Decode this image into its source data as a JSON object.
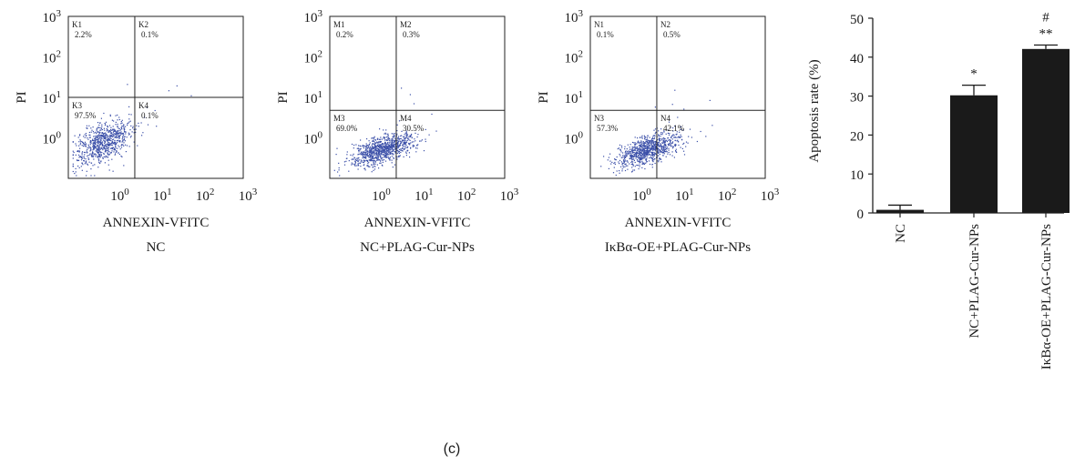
{
  "figure": {
    "caption": "(c)"
  },
  "flow_panels": [
    {
      "group_label": "NC",
      "xlabel": "ANNEXIN-VFITC",
      "ylabel": "PI",
      "quadrants": [
        {
          "name": "K1",
          "pct": "2.2%"
        },
        {
          "name": "K2",
          "pct": "0.1%"
        },
        {
          "name": "K3",
          "pct": "97.5%"
        },
        {
          "name": "K4",
          "pct": "0.1%"
        }
      ],
      "gate_x": 0.38,
      "gate_y": 0.5,
      "cloud": {
        "cx": -0.3,
        "cy": -0.1,
        "sx": 0.33,
        "sy": 0.28,
        "rho": 0.5,
        "n": 750
      }
    },
    {
      "group_label": "NC+PLAG-Cur-NPs",
      "xlabel": "ANNEXIN-VFITC",
      "ylabel": "PI",
      "quadrants": [
        {
          "name": "M1",
          "pct": "0.2%"
        },
        {
          "name": "M2",
          "pct": "0.3%"
        },
        {
          "name": "M3",
          "pct": "69.0%"
        },
        {
          "name": "M4",
          "pct": "30.5%"
        }
      ],
      "gate_x": 0.38,
      "gate_y": 0.58,
      "cloud": {
        "cx": 0.12,
        "cy": -0.28,
        "sx": 0.38,
        "sy": 0.2,
        "rho": 0.6,
        "n": 900
      }
    },
    {
      "group_label": "IκBα-OE+PLAG-Cur-NPs",
      "xlabel": "ANNEXIN-VFITC",
      "ylabel": "PI",
      "quadrants": [
        {
          "name": "N1",
          "pct": "0.1%"
        },
        {
          "name": "N2",
          "pct": "0.5%"
        },
        {
          "name": "N3",
          "pct": "57.3%"
        },
        {
          "name": "N4",
          "pct": "42.1%"
        }
      ],
      "gate_x": 0.38,
      "gate_y": 0.58,
      "cloud": {
        "cx": 0.25,
        "cy": -0.28,
        "sx": 0.38,
        "sy": 0.2,
        "rho": 0.6,
        "n": 900
      }
    }
  ],
  "chart_data": {
    "type": "bar",
    "ylabel": "Apoptosis rate (%)",
    "ylim": [
      0,
      50
    ],
    "yticks": [
      "0",
      "10",
      "20",
      "30",
      "40",
      "50"
    ],
    "categories": [
      "NC",
      "NC+PLAG-Cur-NPs",
      "IκBα-OE+PLAG-Cur-NPs"
    ],
    "values": [
      0.8,
      30.2,
      42.1
    ],
    "errors": [
      1.2,
      2.6,
      1.0
    ],
    "annotations": [
      "",
      "*",
      "**"
    ],
    "annotations_extra": [
      "",
      "",
      "#"
    ],
    "bar_color": "#1a1a1a"
  }
}
